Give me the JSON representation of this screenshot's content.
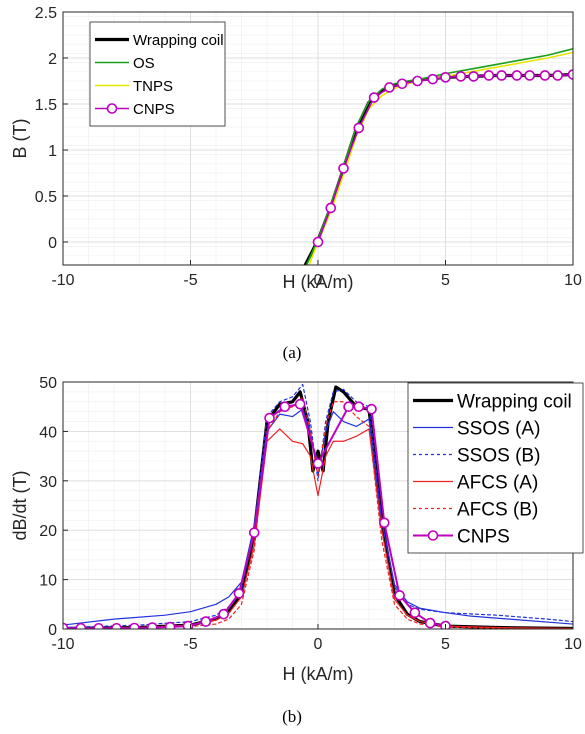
{
  "chart_data": [
    {
      "type": "line",
      "caption": "(a)",
      "xlabel": "H (kA/m)",
      "ylabel": "B (T)",
      "xlim": [
        -10,
        10
      ],
      "ylim": [
        -0.25,
        2.5
      ],
      "xticks": [
        -10,
        -5,
        0,
        5,
        10
      ],
      "yticks": [
        0,
        0.5,
        1,
        1.5,
        2,
        2.5
      ],
      "xtick_labels": [
        "-10",
        "-5",
        "0",
        "5",
        "10"
      ],
      "ytick_labels": [
        "0",
        "0.5",
        "1",
        "1.5",
        "2",
        "2.5"
      ],
      "grid": true,
      "legend_position": "top-left",
      "series": [
        {
          "name": "Wrapping coil",
          "color": "#000000",
          "style": "solid",
          "width": 3.2,
          "marker": false,
          "x": [
            -0.5,
            0,
            0.5,
            1,
            1.5,
            2,
            2.5,
            3,
            3.5,
            4,
            5,
            6,
            7,
            8,
            9,
            10
          ],
          "y": [
            -0.25,
            0.02,
            0.38,
            0.8,
            1.23,
            1.52,
            1.64,
            1.7,
            1.73,
            1.76,
            1.79,
            1.8,
            1.81,
            1.81,
            1.81,
            1.82
          ]
        },
        {
          "name": "OS",
          "color": "#1aa01a",
          "style": "solid",
          "width": 1.6,
          "marker": false,
          "x": [
            -0.45,
            0,
            0.5,
            1,
            1.5,
            2,
            2.5,
            3,
            3.5,
            4,
            5,
            6,
            7,
            8,
            9,
            10
          ],
          "y": [
            -0.25,
            0.03,
            0.4,
            0.82,
            1.25,
            1.53,
            1.66,
            1.72,
            1.75,
            1.77,
            1.83,
            1.88,
            1.93,
            1.98,
            2.03,
            2.1
          ]
        },
        {
          "name": "TNPS",
          "color": "#e6e600",
          "style": "solid",
          "width": 1.6,
          "marker": false,
          "x": [
            -0.35,
            0,
            0.5,
            1,
            1.5,
            2,
            2.5,
            3,
            3.5,
            4,
            5,
            6,
            7,
            8,
            9,
            10
          ],
          "y": [
            -0.25,
            0.0,
            0.33,
            0.73,
            1.15,
            1.45,
            1.59,
            1.67,
            1.72,
            1.75,
            1.8,
            1.85,
            1.9,
            1.95,
            2.0,
            2.06
          ]
        },
        {
          "name": "CNPS",
          "color": "#bf00bf",
          "style": "solid",
          "width": 1.6,
          "marker": true,
          "x": [
            0,
            0.5,
            1,
            1.6,
            2.2,
            2.8,
            3.3,
            3.9,
            4.5,
            5.0,
            5.6,
            6.1,
            6.7,
            7.2,
            7.8,
            8.3,
            8.9,
            9.4,
            10
          ],
          "y": [
            0.0,
            0.37,
            0.8,
            1.24,
            1.57,
            1.68,
            1.72,
            1.75,
            1.77,
            1.79,
            1.8,
            1.8,
            1.81,
            1.81,
            1.81,
            1.81,
            1.81,
            1.81,
            1.82
          ]
        }
      ]
    },
    {
      "type": "line",
      "caption": "(b)",
      "xlabel": "H (kA/m)",
      "ylabel": "dB/dt (T)",
      "xlim": [
        -10,
        10
      ],
      "ylim": [
        0,
        50
      ],
      "xticks": [
        -10,
        -5,
        0,
        5,
        10
      ],
      "yticks": [
        0,
        10,
        20,
        30,
        40,
        50
      ],
      "xtick_labels": [
        "-10",
        "-5",
        "0",
        "5",
        "10"
      ],
      "ytick_labels": [
        "0",
        "10",
        "20",
        "30",
        "40",
        "50"
      ],
      "grid": true,
      "legend_position": "top-right",
      "series": [
        {
          "name": "Wrapping coil",
          "color": "#000000",
          "style": "solid",
          "width": 3.2,
          "marker": false,
          "x": [
            -10,
            -7,
            -5,
            -4,
            -3.5,
            -3,
            -2.5,
            -2,
            -1.5,
            -1,
            -0.7,
            -0.4,
            -0.2,
            0,
            0.2,
            0.4,
            0.7,
            1,
            1.5,
            2,
            2.5,
            3,
            3.5,
            4,
            5,
            7,
            10
          ],
          "y": [
            0.1,
            0.3,
            0.8,
            2.0,
            3.5,
            7.0,
            19.5,
            42.0,
            45.5,
            46.0,
            48.0,
            42.0,
            32.0,
            36.0,
            32.0,
            42.0,
            49.0,
            48.0,
            45.0,
            44.5,
            22.0,
            7.0,
            3.0,
            1.5,
            0.6,
            0.3,
            0.1
          ]
        },
        {
          "name": "SSOS (A)",
          "color": "#2233dd",
          "style": "solid",
          "width": 1.2,
          "marker": false,
          "x": [
            -10,
            -8,
            -6,
            -5,
            -4,
            -3.5,
            -3,
            -2.5,
            -2,
            -1.5,
            -1,
            -0.6,
            -0.3,
            0,
            0.3,
            0.6,
            1,
            1.5,
            2,
            2.5,
            3,
            3.5,
            4,
            5,
            6,
            8,
            10
          ],
          "y": [
            0.8,
            2.0,
            2.8,
            3.5,
            5.0,
            6.5,
            9.5,
            21.0,
            40.0,
            43.5,
            43.0,
            44.5,
            40.0,
            31.0,
            40.0,
            44.0,
            42.0,
            41.0,
            42.5,
            22.0,
            9.0,
            5.5,
            4.2,
            3.3,
            2.6,
            1.8,
            1.0
          ]
        },
        {
          "name": "SSOS (B)",
          "color": "#2233dd",
          "style": "dashed",
          "width": 1.2,
          "marker": false,
          "x": [
            -10,
            -7,
            -5,
            -4,
            -3.5,
            -3,
            -2.5,
            -2,
            -1.5,
            -1,
            -0.6,
            -0.3,
            0,
            0.3,
            0.6,
            1,
            1.5,
            2,
            2.5,
            3,
            3.5,
            4,
            5,
            7,
            9,
            10
          ],
          "y": [
            0.3,
            0.8,
            1.5,
            2.8,
            4.5,
            8.0,
            20.0,
            43.0,
            46.0,
            47.0,
            49.5,
            42.0,
            30.0,
            42.0,
            48.0,
            48.5,
            46.0,
            45.0,
            22.0,
            8.5,
            5.0,
            4.0,
            3.3,
            2.8,
            2.0,
            1.5
          ]
        },
        {
          "name": "AFCS (A)",
          "color": "#ee2222",
          "style": "solid",
          "width": 1.2,
          "marker": false,
          "x": [
            -10,
            -7,
            -5,
            -4,
            -3.5,
            -3,
            -2.5,
            -2,
            -1.5,
            -1,
            -0.6,
            -0.3,
            0,
            0.3,
            0.6,
            1,
            1.5,
            2,
            2.5,
            3,
            3.5,
            4,
            5,
            7,
            10
          ],
          "y": [
            0.1,
            0.3,
            0.8,
            1.8,
            3.2,
            6.5,
            17.0,
            38.0,
            40.5,
            38.0,
            37.5,
            35.0,
            27.0,
            35.0,
            38.0,
            38.0,
            39.0,
            40.5,
            20.0,
            6.0,
            2.8,
            1.5,
            0.6,
            0.3,
            0.1
          ]
        },
        {
          "name": "AFCS (B)",
          "color": "#ee2222",
          "style": "dashed",
          "width": 1.2,
          "marker": false,
          "x": [
            -10,
            -7,
            -5,
            -4,
            -3.5,
            -3,
            -2.5,
            -2,
            -1.5,
            -1,
            -0.6,
            -0.3,
            0,
            0.3,
            0.6,
            1,
            1.5,
            2,
            2.5,
            3,
            3.5,
            4,
            5,
            7,
            10
          ],
          "y": [
            0.05,
            0.2,
            0.5,
            1.0,
            2.0,
            5.0,
            16.0,
            40.0,
            44.0,
            45.0,
            47.0,
            40.0,
            31.0,
            41.0,
            46.0,
            46.0,
            43.0,
            41.0,
            18.0,
            5.0,
            2.0,
            1.0,
            0.4,
            0.15,
            0.05
          ]
        },
        {
          "name": "CNPS",
          "color": "#bf00bf",
          "style": "solid",
          "width": 2.0,
          "marker": true,
          "x": [
            -10,
            -9.3,
            -8.6,
            -7.9,
            -7.2,
            -6.5,
            -5.8,
            -5.1,
            -4.4,
            -3.7,
            -3.1,
            -2.5,
            -1.9,
            -1.3,
            -0.7,
            0,
            1.2,
            1.6,
            2.1,
            2.6,
            3.2,
            3.8,
            4.4,
            5.0
          ],
          "y": [
            0.2,
            0.15,
            0.15,
            0.15,
            0.2,
            0.3,
            0.4,
            0.6,
            1.5,
            3.0,
            7.2,
            19.5,
            42.7,
            45.0,
            45.5,
            33.5,
            45.0,
            45.0,
            44.5,
            21.5,
            6.8,
            3.3,
            1.2,
            0.6
          ]
        }
      ]
    }
  ]
}
